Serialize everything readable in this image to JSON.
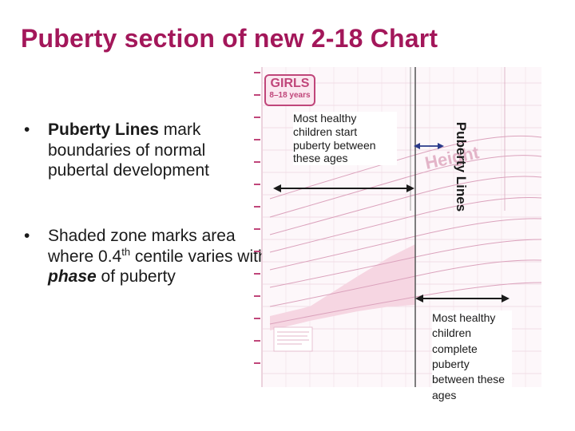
{
  "slide": {
    "title": "Puberty section of new 2-18 Chart"
  },
  "bullets": [
    {
      "bold": "Puberty Lines",
      "rest": " mark boundaries of normal pubertal development"
    },
    {
      "pre": "Shaded zone marks area where 0.4",
      "sup": "th",
      "mid": " centile varies with ",
      "emph": "phase",
      "post": " of puberty"
    }
  ],
  "chart": {
    "badge_title": "GIRLS",
    "badge_subtitle": "8–18 years",
    "vertical_label": "Puberty Lines",
    "note_start": "Most healthy children start puberty between these ages",
    "note_complete": "Most healthy children complete puberty between these ages",
    "colors": {
      "accent": "#a3175a",
      "chart_pink": "#c0467a",
      "shade": "#f6d6e2",
      "grid": "#e7c9d6"
    }
  }
}
